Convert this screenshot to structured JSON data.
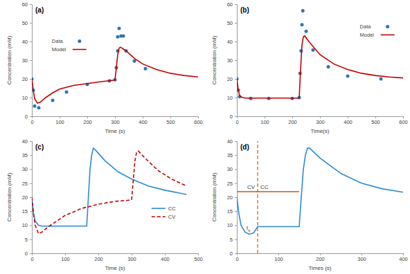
{
  "chart_data": [
    {
      "type": "line",
      "title": "(a)",
      "x_label": "Time (s)",
      "y_label": "Concentration (mM)",
      "xlim": [
        0,
        600
      ],
      "xticks": [
        0,
        100,
        200,
        300,
        400,
        500,
        600
      ],
      "ylim": [
        0,
        60
      ],
      "yticks": [
        0,
        10,
        20,
        30,
        40,
        50,
        60
      ],
      "legend": "center left",
      "series": [
        {
          "name": "Data",
          "type": "scatter",
          "marker": "circle",
          "color": "#2e75b6",
          "x": [
            0,
            5,
            10,
            25,
            75,
            125,
            200,
            280,
            300,
            305,
            310,
            310,
            315,
            322,
            330,
            340,
            370,
            410
          ],
          "values": [
            20,
            14,
            5.5,
            4.5,
            8.5,
            13,
            17,
            19,
            19.5,
            26,
            35,
            42.5,
            47,
            43,
            43,
            35,
            29.5,
            25.5
          ]
        },
        {
          "name": "Model",
          "type": "line",
          "line_style": "solid",
          "color": "#c00000",
          "x": [
            0,
            5,
            10,
            20,
            30,
            50,
            75,
            100,
            150,
            200,
            250,
            300,
            305,
            310,
            315,
            320,
            340,
            370,
            400,
            450,
            500,
            550,
            600
          ],
          "values": [
            20,
            14,
            9.5,
            7,
            7.5,
            10,
            12.5,
            14.5,
            16.5,
            17.5,
            18.5,
            19.3,
            26,
            33,
            36.5,
            37,
            35,
            31,
            28,
            25,
            23,
            21.8,
            21
          ]
        }
      ]
    },
    {
      "type": "line",
      "title": "(b)",
      "x_label": "Time(s)",
      "y_label": "Concentration (mM)",
      "xlim": [
        0,
        600
      ],
      "xticks": [
        0,
        100,
        200,
        300,
        400,
        500,
        600
      ],
      "ylim": [
        0,
        60
      ],
      "yticks": [
        0,
        10,
        20,
        30,
        40,
        50,
        60
      ],
      "legend": "upper right",
      "series": [
        {
          "name": "Data",
          "type": "scatter",
          "marker": "circle",
          "color": "#2e75b6",
          "x": [
            0,
            5,
            10,
            50,
            115,
            200,
            225,
            228,
            232,
            235,
            238,
            250,
            275,
            330,
            400,
            520
          ],
          "values": [
            20,
            14,
            10.5,
            9.5,
            9.5,
            9.5,
            10,
            23,
            35,
            49,
            56.5,
            45.5,
            35.5,
            26.5,
            21.5,
            20
          ]
        },
        {
          "name": "Model",
          "type": "line",
          "line_style": "solid",
          "color": "#c00000",
          "x": [
            0,
            5,
            10,
            20,
            30,
            225,
            230,
            235,
            240,
            245,
            260,
            300,
            350,
            400,
            450,
            500,
            550,
            600
          ],
          "values": [
            20,
            14,
            11,
            10,
            9.7,
            9.7,
            25,
            38,
            42.5,
            43,
            40,
            33,
            28,
            25,
            23,
            21.8,
            21,
            20.5
          ]
        }
      ]
    },
    {
      "type": "line",
      "title": "(c)",
      "x_label": "Time (s)",
      "y_label": "Concentration (mM)",
      "xlim": [
        0,
        500
      ],
      "xticks": [
        0,
        100,
        200,
        300,
        400,
        500
      ],
      "ylim": [
        0,
        40
      ],
      "yticks": [
        0,
        5,
        10,
        15,
        20,
        25,
        30,
        35,
        40
      ],
      "legend": "lower right",
      "series": [
        {
          "name": "CC",
          "type": "line",
          "line_style": "solid",
          "color": "#2a8ad4",
          "x": [
            0,
            5,
            10,
            20,
            30,
            165,
            170,
            175,
            180,
            185,
            190,
            220,
            260,
            300,
            350,
            400,
            465
          ],
          "values": [
            20,
            14,
            11.5,
            10,
            9.7,
            9.7,
            20,
            30,
            35,
            37.5,
            37,
            33,
            29,
            26.5,
            24,
            22.5,
            21
          ]
        },
        {
          "name": "CV",
          "type": "line",
          "line_style": "dashed",
          "color": "#c00000",
          "x": [
            0,
            5,
            10,
            20,
            30,
            50,
            100,
            150,
            200,
            250,
            300,
            305,
            310,
            315,
            320,
            340,
            380,
            420,
            465
          ],
          "values": [
            20,
            14,
            10,
            7,
            7.5,
            9.5,
            13.5,
            16,
            17.5,
            18.5,
            19,
            26,
            33,
            36,
            36.5,
            34,
            29.5,
            26.5,
            24
          ]
        }
      ]
    },
    {
      "type": "line",
      "title": "(d)",
      "x_label": "Times (s)",
      "y_label": "Concentration (mM)",
      "xlim": [
        0,
        400
      ],
      "xticks": [
        0,
        100,
        200,
        300,
        400
      ],
      "ylim": [
        0,
        40
      ],
      "yticks": [
        0,
        5,
        10,
        15,
        20,
        25,
        30,
        35,
        40
      ],
      "series": [
        {
          "type": "line",
          "line_style": "solid",
          "color": "#2a8ad4",
          "x": [
            0,
            5,
            10,
            20,
            30,
            40,
            50,
            150,
            155,
            160,
            165,
            170,
            175,
            200,
            250,
            300,
            350,
            400
          ],
          "values": [
            20,
            14,
            10,
            7.5,
            6.8,
            7.2,
            9.5,
            9.5,
            20,
            30,
            35,
            37.5,
            37.5,
            34,
            28.5,
            25,
            23,
            21.8
          ]
        }
      ],
      "hline": {
        "y": 22,
        "x": [
          0,
          150
        ],
        "color": "#c55a11",
        "line_style": "solid"
      },
      "vline": {
        "x": 50,
        "color": "#c55a11",
        "line_style": "dashed",
        "label": "t",
        "label_sub": "s"
      },
      "region_labels": [
        "CV",
        "CC"
      ]
    }
  ]
}
